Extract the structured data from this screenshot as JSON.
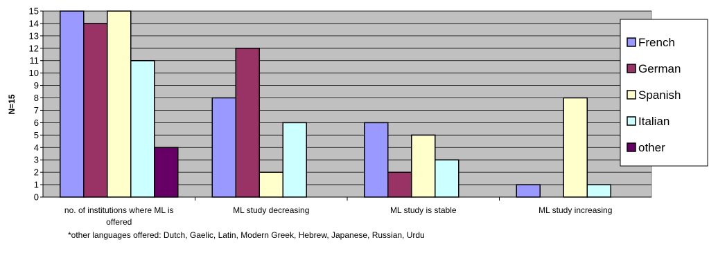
{
  "chart_data": {
    "type": "bar",
    "ylabel": "N=15",
    "ylim": [
      0,
      15
    ],
    "yticks": [
      "0",
      "1",
      "2",
      "3",
      "4",
      "5",
      "6",
      "7",
      "8",
      "9",
      "10",
      "11",
      "12",
      "13",
      "14",
      "15"
    ],
    "grid": true,
    "legend_position": "right",
    "categories": [
      [
        "no. of institutions where ML is",
        "offered"
      ],
      [
        "ML study decreasing"
      ],
      [
        "ML study is stable"
      ],
      [
        "ML study increasing"
      ]
    ],
    "series": [
      {
        "name": "French",
        "color": "#9999ff",
        "values": [
          15,
          8,
          6,
          1
        ]
      },
      {
        "name": "German",
        "color": "#993366",
        "values": [
          14,
          12,
          2,
          0
        ]
      },
      {
        "name": "Spanish",
        "color": "#ffffcc",
        "values": [
          15,
          2,
          5,
          8
        ]
      },
      {
        "name": "Italian",
        "color": "#ccffff",
        "values": [
          11,
          6,
          3,
          1
        ]
      },
      {
        "name": "other",
        "color": "#660066",
        "values": [
          4,
          0,
          0,
          0
        ]
      }
    ],
    "plot_background": "#c0c0c0",
    "footnote": "*other languages offered: Dutch, Gaelic, Latin, Modern Greek, Hebrew, Japanese, Russian, Urdu"
  }
}
